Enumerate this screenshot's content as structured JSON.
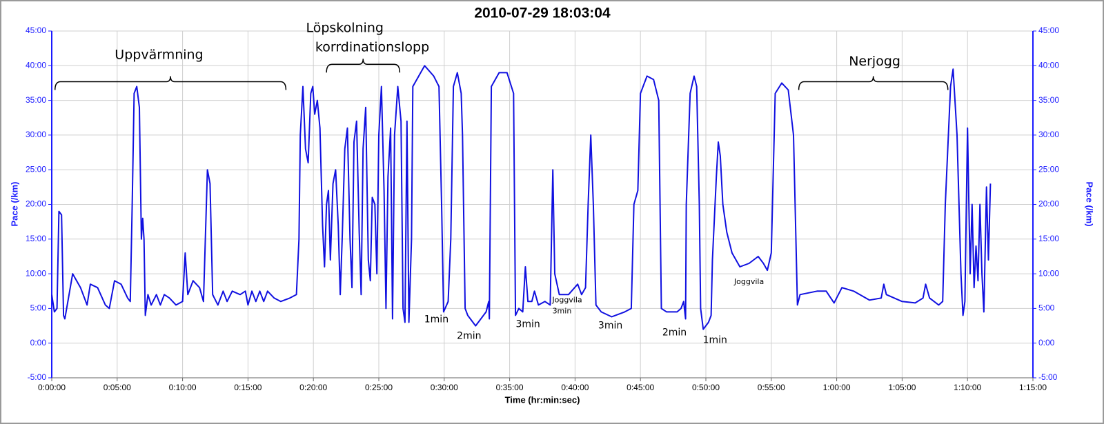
{
  "chart_data": {
    "type": "line",
    "title": "2010-07-29 18:03:04",
    "x_label": "Time (hr:min:sec)",
    "y_label": "Pace (/km)",
    "y2_label": "Pace (/km)",
    "grid": true,
    "xlim": [
      0,
      75
    ],
    "xticks": [
      {
        "value": 0,
        "label": "0:00:00"
      },
      {
        "value": 5,
        "label": "0:05:00"
      },
      {
        "value": 10,
        "label": "0:10:00"
      },
      {
        "value": 15,
        "label": "0:15:00"
      },
      {
        "value": 20,
        "label": "0:20:00"
      },
      {
        "value": 25,
        "label": "0:25:00"
      },
      {
        "value": 30,
        "label": "0:30:00"
      },
      {
        "value": 35,
        "label": "0:35:00"
      },
      {
        "value": 40,
        "label": "0:40:00"
      },
      {
        "value": 45,
        "label": "0:45:00"
      },
      {
        "value": 50,
        "label": "0:50:00"
      },
      {
        "value": 55,
        "label": "0:55:00"
      },
      {
        "value": 60,
        "label": "1:00:00"
      },
      {
        "value": 65,
        "label": "1:05:00"
      },
      {
        "value": 70,
        "label": "1:10:00"
      },
      {
        "value": 75,
        "label": "1:15:00"
      }
    ],
    "ylim": [
      -5,
      45
    ],
    "yticks": [
      {
        "value": -5,
        "label": "-5:00"
      },
      {
        "value": 0,
        "label": "0:00"
      },
      {
        "value": 5,
        "label": "5:00"
      },
      {
        "value": 10,
        "label": "10:00"
      },
      {
        "value": 15,
        "label": "15:00"
      },
      {
        "value": 20,
        "label": "20:00"
      },
      {
        "value": 25,
        "label": "25:00"
      },
      {
        "value": 30,
        "label": "30:00"
      },
      {
        "value": 35,
        "label": "35:00"
      },
      {
        "value": 40,
        "label": "40:00"
      },
      {
        "value": 45,
        "label": "45:00"
      }
    ],
    "y2lim": [
      -5,
      45
    ],
    "y2ticks": [
      {
        "value": -5,
        "label": "-5:00"
      },
      {
        "value": 0,
        "label": "0:00"
      },
      {
        "value": 5,
        "label": "5:00"
      },
      {
        "value": 10,
        "label": "10:00"
      },
      {
        "value": 15,
        "label": "15:00"
      },
      {
        "value": 20,
        "label": "20:00"
      },
      {
        "value": 25,
        "label": "25:00"
      },
      {
        "value": 30,
        "label": "30:00"
      },
      {
        "value": 35,
        "label": "35:00"
      },
      {
        "value": 40,
        "label": "40:00"
      },
      {
        "value": 45,
        "label": "45:00"
      }
    ],
    "annotations": [
      {
        "text": "Uppvärmning"
      },
      {
        "text": "Löpskolning"
      },
      {
        "text": "korrdinationslopp"
      },
      {
        "text": "Nerjogg"
      },
      {
        "text": "1min"
      },
      {
        "text": "2min"
      },
      {
        "text": "3min"
      },
      {
        "text": "Joggvila"
      },
      {
        "text": "3min"
      },
      {
        "text": "3min"
      },
      {
        "text": "2min"
      },
      {
        "text": "1min"
      },
      {
        "text": "Joggvila"
      }
    ],
    "x": [
      0,
      0.2,
      0.4,
      0.55,
      0.75,
      0.9,
      1.0,
      1.6,
      2.2,
      2.7,
      2.95,
      3.5,
      4.1,
      4.4,
      4.8,
      5.3,
      5.8,
      6.0,
      6.15,
      6.3,
      6.5,
      6.7,
      6.85,
      6.95,
      7.05,
      7.15,
      7.35,
      7.6,
      8.0,
      8.3,
      8.6,
      9.0,
      9.5,
      10.0,
      10.2,
      10.4,
      10.8,
      11.3,
      11.6,
      11.9,
      12.1,
      12.3,
      12.7,
      13.1,
      13.4,
      13.8,
      14.4,
      14.8,
      15.0,
      15.3,
      15.6,
      15.9,
      16.2,
      16.5,
      17.0,
      17.5,
      18.2,
      18.7,
      18.9,
      19.0,
      19.2,
      19.4,
      19.6,
      19.8,
      19.95,
      20.1,
      20.3,
      20.5,
      20.7,
      20.85,
      21.0,
      21.15,
      21.3,
      21.5,
      21.7,
      21.9,
      22.05,
      22.2,
      22.4,
      22.6,
      22.8,
      22.95,
      23.1,
      23.3,
      23.5,
      23.65,
      23.8,
      24.0,
      24.2,
      24.35,
      24.5,
      24.7,
      24.85,
      25.0,
      25.2,
      25.4,
      25.55,
      25.7,
      25.9,
      26.05,
      26.2,
      26.45,
      26.7,
      26.85,
      27.0,
      27.15,
      27.3,
      27.5,
      27.6,
      28.5,
      29.2,
      29.6,
      29.8,
      29.95,
      30.3,
      30.5,
      30.7,
      31.0,
      31.3,
      31.4,
      31.6,
      31.8,
      32.4,
      33.2,
      33.4,
      33.45,
      33.6,
      34.2,
      34.8,
      35.3,
      35.45,
      35.7,
      36.0,
      36.2,
      36.4,
      36.7,
      36.9,
      37.2,
      37.7,
      38.1,
      38.3,
      38.45,
      38.8,
      39.5,
      40.2,
      40.5,
      40.8,
      41.0,
      41.2,
      41.4,
      41.6,
      42.0,
      42.8,
      43.8,
      44.3,
      44.5,
      44.8,
      45.0,
      45.5,
      46.0,
      46.4,
      46.6,
      47.0,
      47.8,
      48.1,
      48.3,
      48.45,
      48.5,
      48.8,
      49.1,
      49.3,
      49.5,
      49.6,
      49.8,
      50.2,
      50.4,
      50.5,
      50.8,
      50.95,
      51.1,
      51.3,
      51.6,
      52.0,
      52.6,
      53.3,
      54.0,
      54.4,
      54.7,
      55.0,
      55.3,
      55.8,
      56.3,
      56.7,
      57.0,
      57.2,
      58.5,
      59.2,
      59.8,
      60.4,
      61.3,
      62.5,
      63.4,
      63.6,
      63.8,
      65,
      66,
      66.6,
      66.8,
      67.1,
      67.8,
      68.1,
      68.3,
      68.7,
      68.9,
      69.2,
      69.5,
      69.65,
      69.8,
      70.0,
      70.2,
      70.35,
      70.5,
      70.65,
      70.8,
      70.95,
      71.1,
      71.25,
      71.45,
      71.6,
      71.75
    ],
    "series": [
      {
        "name": "Pace",
        "color": "#1010e0",
        "values": [
          7,
          4.5,
          5,
          19,
          18.5,
          4,
          3.5,
          10,
          8,
          5.5,
          8.5,
          8,
          5.5,
          5,
          9,
          8.5,
          6.5,
          6,
          20,
          36,
          37,
          34,
          15,
          18,
          15,
          4,
          7,
          5.5,
          7,
          5.5,
          7,
          6.5,
          5.5,
          6,
          13,
          7,
          9,
          8,
          6,
          25,
          23,
          7,
          5.5,
          7.5,
          6,
          7.5,
          7,
          7.5,
          5.5,
          7.5,
          6,
          7.5,
          6,
          7.5,
          6.5,
          6,
          6.5,
          7,
          15,
          30,
          37,
          28,
          26,
          36,
          37,
          33,
          35,
          31,
          17,
          11,
          20,
          22,
          12,
          23,
          25,
          17,
          7,
          15,
          28,
          31,
          15,
          8,
          29,
          32,
          16,
          7,
          28,
          34,
          12,
          9,
          21,
          20,
          10,
          30,
          37,
          22,
          5,
          24,
          31,
          3.5,
          30,
          37,
          32,
          5,
          3,
          32,
          3,
          15,
          37,
          40,
          38.5,
          37,
          20,
          4.5,
          6,
          15,
          37,
          39,
          36,
          30,
          5,
          4,
          2.5,
          4.5,
          6,
          3.5,
          37,
          39,
          39,
          36,
          4,
          5,
          4.5,
          11,
          6,
          6,
          7.5,
          5.5,
          6,
          5.5,
          25,
          10,
          7,
          7,
          8.5,
          7,
          8,
          20,
          30,
          20,
          5.5,
          4.5,
          3.8,
          4.5,
          5,
          20,
          22,
          36,
          38.5,
          38,
          35,
          5,
          4.5,
          4.5,
          5,
          6,
          3.5,
          20,
          36,
          38.5,
          37,
          20,
          5,
          2,
          3,
          4,
          12,
          24,
          29,
          27,
          20,
          16,
          13,
          11,
          11.5,
          12.5,
          11.5,
          10.5,
          13,
          36,
          37.5,
          36.5,
          30,
          5.5,
          7,
          7.5,
          7.5,
          5.8,
          8,
          7.5,
          6.2,
          6.5,
          8.5,
          7,
          6,
          5.8,
          6.5,
          8.5,
          6.5,
          5.5,
          6,
          20,
          37,
          39.5,
          30,
          10,
          4,
          6,
          31,
          10,
          20,
          8,
          14,
          9,
          20,
          10,
          4.5,
          22.5,
          12,
          23
        ]
      }
    ]
  }
}
